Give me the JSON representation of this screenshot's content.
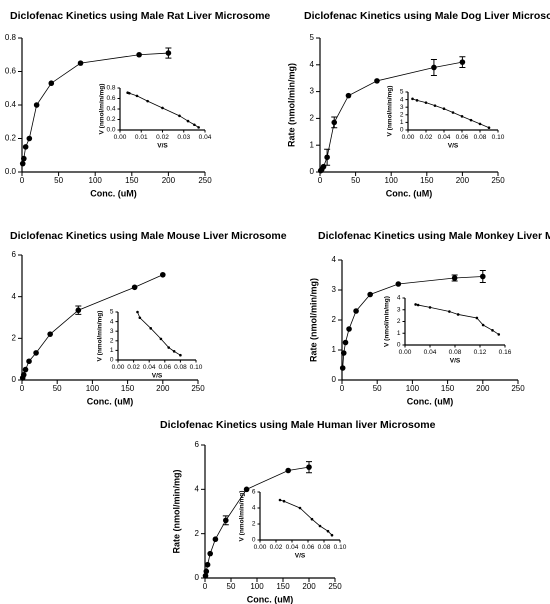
{
  "chart_data": [
    {
      "type": "scatter",
      "title": "Diclofenac Kinetics using Male Rat Liver Microsome",
      "x_label": "Conc. (uM)",
      "y_label": "Rate (nmol/min/mg)",
      "color": "#000000",
      "x": [
        1,
        2.5,
        5,
        10,
        20,
        40,
        80,
        160,
        200
      ],
      "values": [
        0.05,
        0.08,
        0.15,
        0.2,
        0.4,
        0.53,
        0.65,
        0.7,
        0.71
      ],
      "errors": [
        0,
        0,
        0,
        0,
        0,
        0,
        0,
        0,
        0.03
      ],
      "xlim": [
        0,
        250
      ],
      "ylim": [
        0,
        0.8
      ],
      "xticks": [
        0,
        50,
        100,
        150,
        200,
        250
      ],
      "yticks": [
        {
          "value": 0,
          "label": "0.0"
        },
        {
          "value": 0.2,
          "label": "0.2"
        },
        {
          "value": 0.4,
          "label": "0.4"
        },
        {
          "value": 0.6,
          "label": "0.6"
        },
        {
          "value": 0.8,
          "label": "0.8"
        }
      ],
      "inset": {
        "type": "scatter",
        "x_label": "V/S",
        "y_label": "V (nmol/min/mg)",
        "x": [
          0.0036,
          0.0044,
          0.008,
          0.013,
          0.02,
          0.028,
          0.032,
          0.035,
          0.037
        ],
        "values": [
          0.71,
          0.7,
          0.65,
          0.55,
          0.42,
          0.27,
          0.17,
          0.1,
          0.05
        ],
        "xlim": [
          0,
          0.04
        ],
        "ylim": [
          0,
          0.8
        ],
        "xticks": [
          {
            "value": 0,
            "label": "0.00"
          },
          {
            "value": 0.01,
            "label": "0.01"
          },
          {
            "value": 0.02,
            "label": "0.02"
          },
          {
            "value": 0.03,
            "label": "0.03"
          },
          {
            "value": 0.04,
            "label": "0.04"
          }
        ],
        "yticks": [
          {
            "value": 0,
            "label": "0.0"
          },
          {
            "value": 0.2,
            "label": "0.2"
          },
          {
            "value": 0.4,
            "label": "0.4"
          },
          {
            "value": 0.6,
            "label": "0.6"
          },
          {
            "value": 0.8,
            "label": "0.8"
          }
        ]
      }
    },
    {
      "type": "scatter",
      "title": "Diclofenac Kinetics using Male Dog Liver Microsome",
      "x_label": "Conc. (uM)",
      "y_label": "Rate (nmol/min/mg)",
      "color": "#000000",
      "x": [
        1,
        2.5,
        5,
        10,
        20,
        40,
        80,
        160,
        200
      ],
      "values": [
        0.05,
        0.1,
        0.2,
        0.55,
        1.85,
        2.85,
        3.4,
        3.9,
        4.1
      ],
      "errors": [
        0,
        0,
        0,
        0.3,
        0.2,
        0,
        0,
        0.3,
        0.2
      ],
      "xlim": [
        0,
        250
      ],
      "ylim": [
        0,
        5
      ],
      "xticks": [
        0,
        50,
        100,
        150,
        200,
        250
      ],
      "yticks": [
        0,
        1,
        2,
        3,
        4,
        5
      ],
      "inset": {
        "type": "scatter",
        "x_label": "V/S",
        "y_label": "V (nmol/min/mg)",
        "x": [
          0.005,
          0.01,
          0.02,
          0.03,
          0.04,
          0.05,
          0.06,
          0.07,
          0.08,
          0.09
        ],
        "values": [
          4.1,
          3.9,
          3.6,
          3.2,
          2.8,
          2.3,
          1.8,
          1.3,
          0.8,
          0.3
        ],
        "xlim": [
          0,
          0.1
        ],
        "ylim": [
          0,
          5
        ],
        "xticks": [
          {
            "value": 0,
            "label": "0.00"
          },
          {
            "value": 0.02,
            "label": "0.02"
          },
          {
            "value": 0.04,
            "label": "0.04"
          },
          {
            "value": 0.06,
            "label": "0.06"
          },
          {
            "value": 0.08,
            "label": "0.08"
          },
          {
            "value": 0.1,
            "label": "0.10"
          }
        ],
        "yticks": [
          0,
          1,
          2,
          3,
          4,
          5
        ]
      }
    },
    {
      "type": "scatter",
      "title": "Diclofenac Kinetics using Male Mouse Liver Microsome",
      "x_label": "Conc. (uM)",
      "y_label": "Rate (nmol/min/mg)",
      "color": "#000000",
      "x": [
        1,
        2.5,
        5,
        10,
        20,
        40,
        80,
        160,
        200
      ],
      "values": [
        0.1,
        0.25,
        0.5,
        0.9,
        1.3,
        2.2,
        3.35,
        4.45,
        5.05
      ],
      "errors": [
        0,
        0,
        0,
        0,
        0,
        0,
        0.2,
        0,
        0
      ],
      "xlim": [
        0,
        250
      ],
      "ylim": [
        0,
        6
      ],
      "xticks": [
        0,
        50,
        100,
        150,
        200,
        250
      ],
      "yticks": [
        0,
        2,
        4,
        6
      ],
      "inset": {
        "type": "scatter",
        "x_label": "V/S",
        "y_label": "V (nmol/min/mg)",
        "x": [
          0.025,
          0.028,
          0.042,
          0.055,
          0.065,
          0.072,
          0.08
        ],
        "values": [
          5,
          4.4,
          3.3,
          2.2,
          1.3,
          0.9,
          0.5
        ],
        "xlim": [
          0,
          0.1
        ],
        "ylim": [
          0,
          5
        ],
        "xticks": [
          {
            "value": 0,
            "label": "0.00"
          },
          {
            "value": 0.02,
            "label": "0.02"
          },
          {
            "value": 0.04,
            "label": "0.04"
          },
          {
            "value": 0.06,
            "label": "0.06"
          },
          {
            "value": 0.08,
            "label": "0.08"
          },
          {
            "value": 0.1,
            "label": "0.10"
          }
        ],
        "yticks": [
          0,
          1,
          2,
          3,
          4,
          5
        ]
      }
    },
    {
      "type": "scatter",
      "title": "Diclofenac Kinetics using Male Monkey Liver Microsome",
      "x_label": "Conc. (uM)",
      "y_label": "Rate (nmol/min/mg)",
      "color": "#000000",
      "x": [
        1,
        2.5,
        5,
        10,
        20,
        40,
        80,
        160,
        200
      ],
      "values": [
        0.4,
        0.9,
        1.25,
        1.7,
        2.3,
        2.85,
        3.2,
        3.4,
        3.45
      ],
      "errors": [
        0,
        0,
        0,
        0,
        0,
        0,
        0,
        0.1,
        0.2
      ],
      "xlim": [
        0,
        250
      ],
      "ylim": [
        0,
        4
      ],
      "xticks": [
        0,
        50,
        100,
        150,
        200,
        250
      ],
      "yticks": [
        0,
        1,
        2,
        3,
        4
      ],
      "inset": {
        "type": "scatter",
        "x_label": "V/S",
        "y_label": "V (nmol/min/mg)",
        "x": [
          0.017,
          0.021,
          0.04,
          0.071,
          0.085,
          0.115,
          0.125,
          0.14,
          0.15
        ],
        "values": [
          3.45,
          3.4,
          3.2,
          2.85,
          2.6,
          2.3,
          1.7,
          1.25,
          0.9
        ],
        "xlim": [
          0,
          0.16
        ],
        "ylim": [
          0,
          4
        ],
        "xticks": [
          {
            "value": 0,
            "label": "0.00"
          },
          {
            "value": 0.04,
            "label": "0.04"
          },
          {
            "value": 0.08,
            "label": "0.08"
          },
          {
            "value": 0.12,
            "label": "0.12"
          },
          {
            "value": 0.16,
            "label": "0.16"
          }
        ],
        "yticks": [
          0,
          1,
          2,
          3,
          4
        ]
      }
    },
    {
      "type": "scatter",
      "title": "Diclofenac Kinetics using Male Human liver Microsome",
      "x_label": "Conc. (uM)",
      "y_label": "Rate (nmol/min/mg)",
      "color": "#000000",
      "x": [
        1,
        2.5,
        5,
        10,
        20,
        40,
        80,
        160,
        200
      ],
      "values": [
        0.1,
        0.3,
        0.6,
        1.1,
        1.75,
        2.6,
        4.0,
        4.85,
        5.0
      ],
      "errors": [
        0,
        0,
        0,
        0,
        0,
        0.2,
        0,
        0,
        0.25
      ],
      "xlim": [
        0,
        250
      ],
      "ylim": [
        0,
        6
      ],
      "xticks": [
        0,
        50,
        100,
        150,
        200,
        250
      ],
      "yticks": [
        0,
        2,
        4,
        6
      ],
      "inset": {
        "type": "scatter",
        "x_label": "V/S",
        "y_label": "V (nmol/min/mg)",
        "x": [
          0.025,
          0.03,
          0.05,
          0.065,
          0.075,
          0.085,
          0.09
        ],
        "values": [
          5,
          4.85,
          4,
          2.6,
          1.75,
          1.1,
          0.6
        ],
        "xlim": [
          0,
          0.1
        ],
        "ylim": [
          0,
          6
        ],
        "xticks": [
          {
            "value": 0,
            "label": "0.00"
          },
          {
            "value": 0.02,
            "label": "0.02"
          },
          {
            "value": 0.04,
            "label": "0.04"
          },
          {
            "value": 0.06,
            "label": "0.06"
          },
          {
            "value": 0.08,
            "label": "0.08"
          },
          {
            "value": 0.1,
            "label": "0.10"
          }
        ],
        "yticks": [
          0,
          2,
          4,
          6
        ]
      }
    }
  ]
}
